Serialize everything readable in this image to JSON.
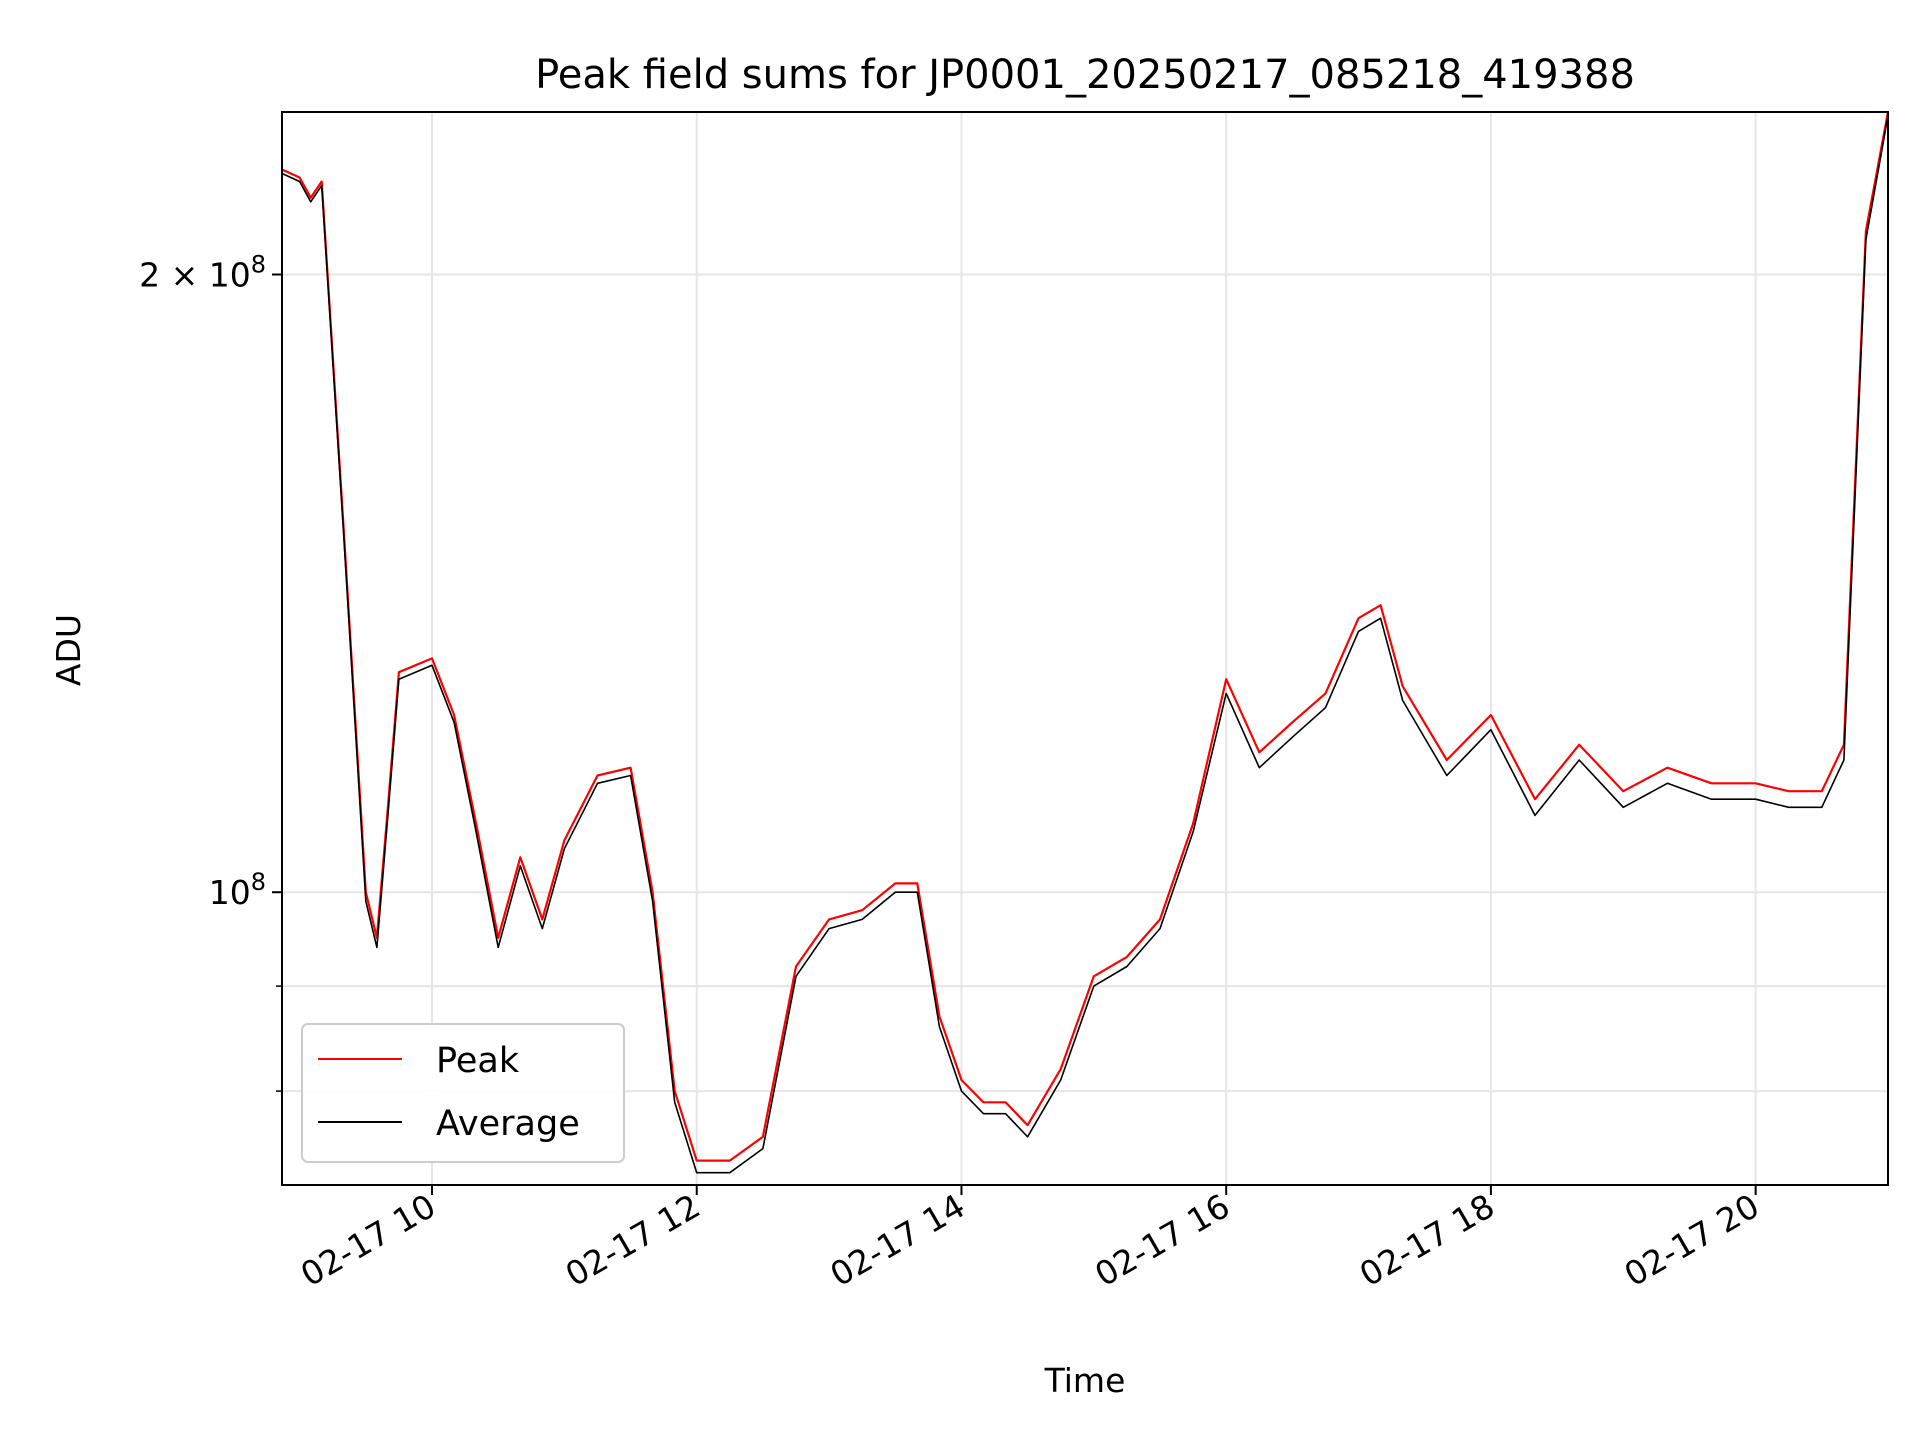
{
  "chart_data": {
    "type": "line",
    "title": "Peak field sums for JP0001_20250217_085218_419388",
    "xlabel": "Time",
    "ylabel": "ADU",
    "y_scale": "log",
    "grid": true,
    "legend_position": "lower-left",
    "xlim": [
      "02-17 08:52",
      "02-17 21:00"
    ],
    "ylim": [
      72000000,
      240000000
    ],
    "x_ticks": [
      "02-17 10",
      "02-17 12",
      "02-17 14",
      "02-17 16",
      "02-17 18",
      "02-17 20"
    ],
    "x_tick_values": [
      "02-17 10:00",
      "02-17 12:00",
      "02-17 14:00",
      "02-17 16:00",
      "02-17 18:00",
      "02-17 20:00"
    ],
    "y_ticks": [
      {
        "value": 100000000,
        "label_base": "10",
        "label_exp": "8"
      },
      {
        "value": 200000000,
        "label_base": "2 × 10",
        "label_exp": "8"
      }
    ],
    "y_minor_ticks": [
      80000000,
      90000000
    ],
    "series": [
      {
        "name": "Peak",
        "color": "#ff0000",
        "x": [
          "02-17 08:52",
          "02-17 09:00",
          "02-17 09:05",
          "02-17 09:10",
          "02-17 09:20",
          "02-17 09:30",
          "02-17 09:35",
          "02-17 09:40",
          "02-17 09:45",
          "02-17 10:00",
          "02-17 10:10",
          "02-17 10:20",
          "02-17 10:30",
          "02-17 10:40",
          "02-17 10:50",
          "02-17 11:00",
          "02-17 11:15",
          "02-17 11:30",
          "02-17 11:40",
          "02-17 11:50",
          "02-17 12:00",
          "02-17 12:15",
          "02-17 12:30",
          "02-17 12:45",
          "02-17 13:00",
          "02-17 13:15",
          "02-17 13:30",
          "02-17 13:40",
          "02-17 13:50",
          "02-17 14:00",
          "02-17 14:10",
          "02-17 14:20",
          "02-17 14:30",
          "02-17 14:45",
          "02-17 15:00",
          "02-17 15:15",
          "02-17 15:30",
          "02-17 15:45",
          "02-17 16:00",
          "02-17 16:15",
          "02-17 16:30",
          "02-17 16:45",
          "02-17 17:00",
          "02-17 17:10",
          "02-17 17:20",
          "02-17 17:40",
          "02-17 18:00",
          "02-17 18:20",
          "02-17 18:40",
          "02-17 19:00",
          "02-17 19:20",
          "02-17 19:40",
          "02-17 20:00",
          "02-17 20:15",
          "02-17 20:30",
          "02-17 20:40",
          "02-17 20:50",
          "02-17 21:00"
        ],
        "values": [
          225000000,
          223000000,
          218000000,
          222000000,
          150000000,
          100000000,
          95000000,
          110000000,
          128000000,
          130000000,
          122000000,
          108000000,
          95000000,
          104000000,
          97000000,
          106000000,
          114000000,
          115000000,
          100000000,
          80000000,
          74000000,
          74000000,
          76000000,
          92000000,
          97000000,
          98000000,
          101000000,
          101000000,
          87000000,
          81000000,
          79000000,
          79000000,
          77000000,
          82000000,
          91000000,
          93000000,
          97000000,
          108000000,
          127000000,
          117000000,
          121000000,
          125000000,
          136000000,
          138000000,
          126000000,
          116000000,
          122000000,
          111000000,
          118000000,
          112000000,
          115000000,
          113000000,
          113000000,
          112000000,
          112000000,
          118000000,
          210000000,
          240000000
        ]
      },
      {
        "name": "Average",
        "color": "#000000",
        "x": [
          "02-17 08:52",
          "02-17 09:00",
          "02-17 09:05",
          "02-17 09:10",
          "02-17 09:20",
          "02-17 09:30",
          "02-17 09:35",
          "02-17 09:40",
          "02-17 09:45",
          "02-17 10:00",
          "02-17 10:10",
          "02-17 10:20",
          "02-17 10:30",
          "02-17 10:40",
          "02-17 10:50",
          "02-17 11:00",
          "02-17 11:15",
          "02-17 11:30",
          "02-17 11:40",
          "02-17 11:50",
          "02-17 12:00",
          "02-17 12:15",
          "02-17 12:30",
          "02-17 12:45",
          "02-17 13:00",
          "02-17 13:15",
          "02-17 13:30",
          "02-17 13:40",
          "02-17 13:50",
          "02-17 14:00",
          "02-17 14:10",
          "02-17 14:20",
          "02-17 14:30",
          "02-17 14:45",
          "02-17 15:00",
          "02-17 15:15",
          "02-17 15:30",
          "02-17 15:45",
          "02-17 16:00",
          "02-17 16:15",
          "02-17 16:30",
          "02-17 16:45",
          "02-17 17:00",
          "02-17 17:10",
          "02-17 17:20",
          "02-17 17:40",
          "02-17 18:00",
          "02-17 18:20",
          "02-17 18:40",
          "02-17 19:00",
          "02-17 19:20",
          "02-17 19:40",
          "02-17 20:00",
          "02-17 20:15",
          "02-17 20:30",
          "02-17 20:40",
          "02-17 20:50",
          "02-17 21:00"
        ],
        "values": [
          224000000,
          222000000,
          217000000,
          221000000,
          149000000,
          99000000,
          94000000,
          109000000,
          127000000,
          129000000,
          121000000,
          107000000,
          94000000,
          103000000,
          96000000,
          105000000,
          113000000,
          114000000,
          99000000,
          79000000,
          73000000,
          73000000,
          75000000,
          91000000,
          96000000,
          97000000,
          100000000,
          100000000,
          86000000,
          80000000,
          78000000,
          78000000,
          76000000,
          81000000,
          90000000,
          92000000,
          96000000,
          107000000,
          125000000,
          115000000,
          119000000,
          123000000,
          134000000,
          136000000,
          124000000,
          114000000,
          120000000,
          109000000,
          116000000,
          110000000,
          113000000,
          111000000,
          111000000,
          110000000,
          110000000,
          116000000,
          208000000,
          239000000
        ]
      }
    ]
  }
}
